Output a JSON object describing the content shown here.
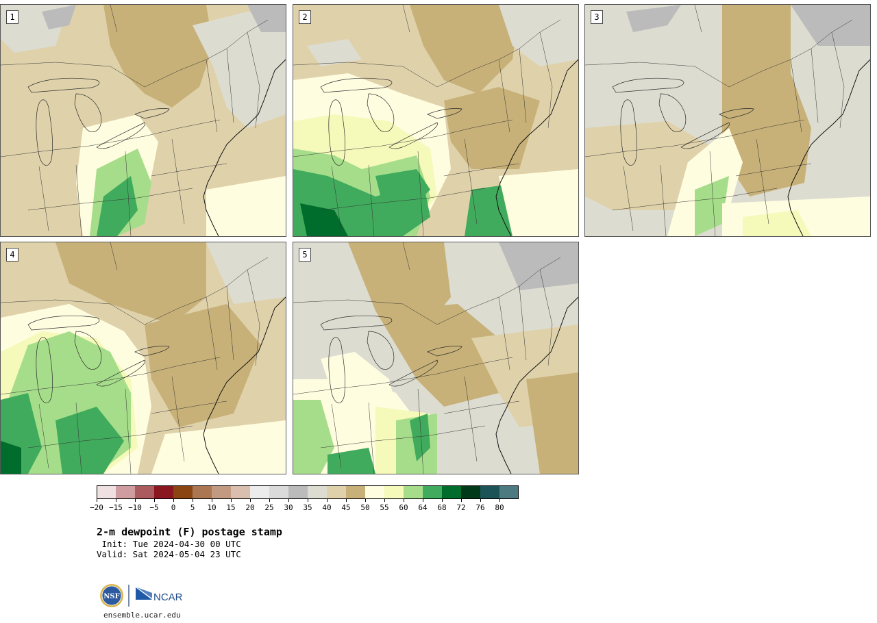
{
  "panels": [
    {
      "label": "1",
      "variant": 1
    },
    {
      "label": "2",
      "variant": 2
    },
    {
      "label": "3",
      "variant": 3
    },
    {
      "label": "4",
      "variant": 4
    },
    {
      "label": "5",
      "variant": 5
    }
  ],
  "colorbar": {
    "colors": [
      "#efe1e1",
      "#cf9d9f",
      "#ab5a5e",
      "#8a1620",
      "#8b4513",
      "#ab7752",
      "#c29a82",
      "#dbbfae",
      "#ececec",
      "#dadada",
      "#bbbbbb",
      "#dddcd1",
      "#dfd2ab",
      "#c7b178",
      "#fffde0",
      "#f5f9ba",
      "#a6dd8a",
      "#41ab5d",
      "#006d2c",
      "#00391a",
      "#1b5358",
      "#4d7a80"
    ],
    "tick_labels": [
      "−20",
      "−15",
      "−10",
      "−5",
      "0",
      "5",
      "10",
      "15",
      "20",
      "25",
      "30",
      "35",
      "40",
      "45",
      "50",
      "55",
      "60",
      "64",
      "68",
      "72",
      "76",
      "80"
    ]
  },
  "title": "2-m dewpoint (F) postage stamp",
  "init_line": " Init: Tue 2024-04-30 00 UTC",
  "valid_line": "Valid: Sat 2024-05-04 23 UTC",
  "logos": {
    "nsf_text": "NSF",
    "ncar_text": "NCAR"
  },
  "site": "ensemble.ucar.edu"
}
